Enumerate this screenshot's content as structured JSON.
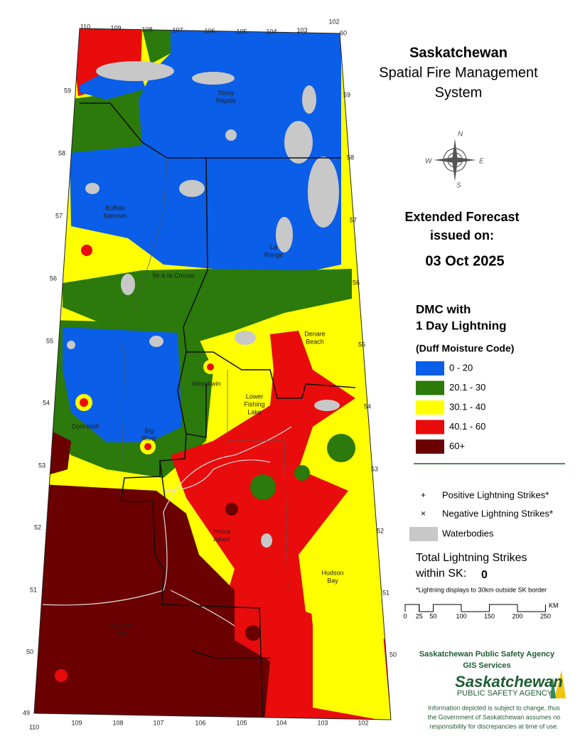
{
  "header": {
    "title": [
      "Saskatchewan",
      "Spatial Fire Management",
      "System"
    ]
  },
  "forecast": {
    "heading": [
      "Extended Forecast",
      "issued on:"
    ],
    "date": "03 Oct 2025"
  },
  "legend": {
    "title": [
      "DMC with",
      "1 Day Lightning"
    ],
    "subtitle": "(Duff Moisture Code)",
    "classes": [
      {
        "label": "0 - 20",
        "color": "#0a5ee8"
      },
      {
        "label": "20.1 - 30",
        "color": "#2b7a0b"
      },
      {
        "label": "30.1 - 40",
        "color": "#ffff00"
      },
      {
        "label": "40.1 - 60",
        "color": "#e80c0c"
      },
      {
        "label": "60+",
        "color": "#6b0000"
      }
    ],
    "symbols": [
      {
        "symbol": "+",
        "label": "Positive Lightning Strikes*"
      },
      {
        "symbol": "×",
        "label": "Negative Lightning Strikes*"
      }
    ],
    "waterbodies": "Waterbodies"
  },
  "total": {
    "label": [
      "Total Lightning Strikes",
      "within SK:"
    ],
    "value": 0
  },
  "note": "*Lightning displays to 30km outside SK border",
  "scale": {
    "ticks": [
      0,
      25,
      50,
      100,
      150,
      200,
      250
    ],
    "unit": "KM"
  },
  "agency": {
    "name": "Saskatchewan Public Safety Agency",
    "unit": "GIS  Services",
    "logo": [
      "Saskatchewan",
      "PUBLIC SAFETY AGENCY"
    ],
    "disclaimer": [
      "Information depicted is subject to change, thus",
      "the Government of Saskatchewan assumes no",
      "responsibility for discrepancies at time of use."
    ]
  },
  "map": {
    "lon_top": [
      110,
      109,
      108,
      107,
      106,
      105,
      104,
      103,
      102
    ],
    "lon_bottom": [
      110,
      109,
      108,
      107,
      106,
      105,
      104,
      103,
      102
    ],
    "lat_left": [
      59,
      58,
      57,
      56,
      55,
      54,
      53,
      52,
      51,
      50,
      49
    ],
    "lat_right": [
      60,
      59,
      58,
      57,
      56,
      55,
      54,
      53,
      52,
      51,
      50
    ],
    "places": [
      {
        "lines": [
          "Stony",
          "Rapids"
        ]
      },
      {
        "lines": [
          "Buffalo",
          "Narrows"
        ]
      },
      {
        "lines": [
          "La",
          "Ronge"
        ]
      },
      {
        "lines": [
          "Île-à-la-Crosse"
        ]
      },
      {
        "lines": [
          "Denare",
          "Beach"
        ]
      },
      {
        "lines": [
          "Weyakwin"
        ]
      },
      {
        "lines": [
          "Lower",
          "Fishing",
          "Lake"
        ]
      },
      {
        "lines": [
          "Dorintosh"
        ]
      },
      {
        "lines": [
          "Big",
          "River"
        ]
      },
      {
        "lines": [
          "Prince",
          "Albert"
        ]
      },
      {
        "lines": [
          "Hudson",
          "Bay"
        ]
      },
      {
        "lines": [
          "Cypress",
          "Hills"
        ]
      }
    ]
  }
}
